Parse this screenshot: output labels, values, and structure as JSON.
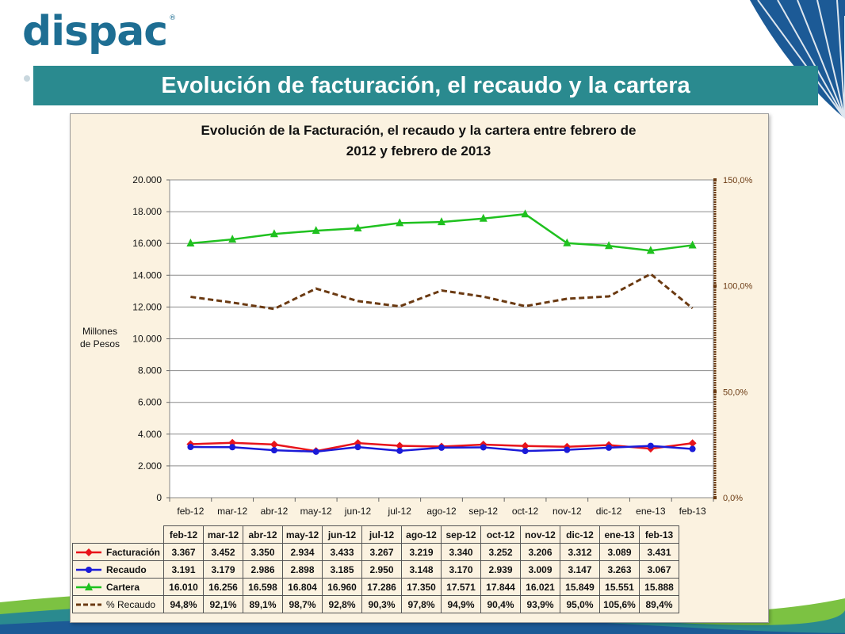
{
  "logo": {
    "text": "dispac",
    "mark": "®"
  },
  "slide_title": "Evolución de facturación, el recaudo y la cartera",
  "chart_data": {
    "type": "line",
    "title_line1": "Evolución de la Facturación, el recaudo y la cartera entre febrero de",
    "title_line2": "2012 y febrero de 2013",
    "ylabel_line1": "Millones",
    "ylabel_line2": "de Pesos",
    "categories": [
      "feb-12",
      "mar-12",
      "abr-12",
      "may-12",
      "jun-12",
      "jul-12",
      "ago-12",
      "sep-12",
      "oct-12",
      "nov-12",
      "dic-12",
      "ene-13",
      "feb-13"
    ],
    "ylim": [
      0,
      20000
    ],
    "y_ticks": [
      "0",
      "2.000",
      "4.000",
      "6.000",
      "8.000",
      "10.000",
      "12.000",
      "14.000",
      "16.000",
      "18.000",
      "20.000"
    ],
    "y2lim": [
      0,
      150
    ],
    "y2_ticks": [
      "0,0%",
      "50,0%",
      "100,0%",
      "150,0%"
    ],
    "grid": true,
    "series": [
      {
        "name": "Facturación",
        "axis": "left",
        "color": "#e8141b",
        "marker": "diamond",
        "values": [
          3367,
          3452,
          3350,
          2934,
          3433,
          3267,
          3219,
          3340,
          3252,
          3206,
          3312,
          3089,
          3431
        ],
        "labels": [
          "3.367",
          "3.452",
          "3.350",
          "2.934",
          "3.433",
          "3.267",
          "3.219",
          "3.340",
          "3.252",
          "3.206",
          "3.312",
          "3.089",
          "3.431"
        ]
      },
      {
        "name": "Recaudo",
        "axis": "left",
        "color": "#1b1bd8",
        "marker": "circle",
        "values": [
          3191,
          3179,
          2986,
          2898,
          3185,
          2950,
          3148,
          3170,
          2939,
          3009,
          3147,
          3263,
          3067
        ],
        "labels": [
          "3.191",
          "3.179",
          "2.986",
          "2.898",
          "3.185",
          "2.950",
          "3.148",
          "3.170",
          "2.939",
          "3.009",
          "3.147",
          "3.263",
          "3.067"
        ]
      },
      {
        "name": "Cartera",
        "axis": "left",
        "color": "#1fc11f",
        "marker": "triangle",
        "values": [
          16010,
          16256,
          16598,
          16804,
          16960,
          17286,
          17350,
          17571,
          17844,
          16021,
          15849,
          15551,
          15888
        ],
        "labels": [
          "16.010",
          "16.256",
          "16.598",
          "16.804",
          "16.960",
          "17.286",
          "17.350",
          "17.571",
          "17.844",
          "16.021",
          "15.849",
          "15.551",
          "15.888"
        ]
      },
      {
        "name": "% Recaudo",
        "axis": "right",
        "color": "#6b3a12",
        "marker": "none",
        "dashed": true,
        "values": [
          94.8,
          92.1,
          89.1,
          98.7,
          92.8,
          90.3,
          97.8,
          94.9,
          90.4,
          93.9,
          95.0,
          105.6,
          89.4
        ],
        "labels": [
          "94,8%",
          "92,1%",
          "89,1%",
          "98,7%",
          "92,8%",
          "90,3%",
          "97,8%",
          "94,9%",
          "90,4%",
          "93,9%",
          "95,0%",
          "105,6%",
          "89,4%"
        ]
      }
    ]
  }
}
